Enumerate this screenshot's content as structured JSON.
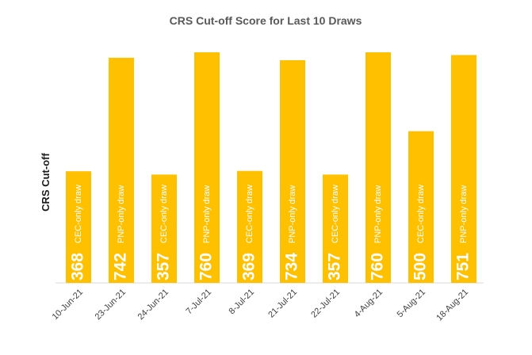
{
  "chart_data": {
    "type": "bar",
    "title": "CRS Cut-off Score for Last 10 Draws",
    "xlabel": "",
    "ylabel": "CRS Cut-off",
    "categories": [
      "10-Jun-21",
      "23-Jun-21",
      "24-Jun-21",
      "7-Jul-21",
      "8-Jul-21",
      "21-Jul-21",
      "22-Jul-21",
      "4-Aug-21",
      "5-Aug-21",
      "18-Aug-21"
    ],
    "values": [
      368,
      742,
      357,
      760,
      369,
      734,
      357,
      760,
      500,
      751
    ],
    "bar_notes": [
      "CEC-only draw",
      "PNP-only draw",
      "CEC-only draw",
      "PNP-only draw",
      "CEC-only draw",
      "PNP-only draw",
      "CEC-only draw",
      "PNP-only draw",
      "CEC-only draw",
      "PNP-only draw"
    ],
    "ylim": [
      0,
      760
    ],
    "grid": false,
    "legend": "none",
    "bar_color": "#FFC000",
    "label_color": "#FFFFFF"
  }
}
